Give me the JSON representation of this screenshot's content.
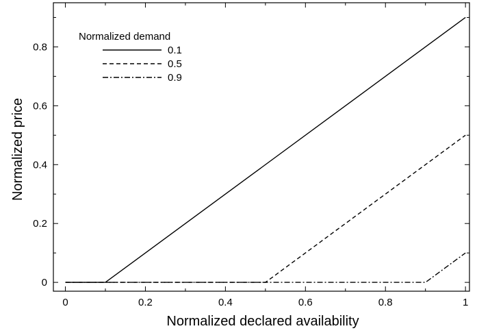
{
  "chart_data": {
    "type": "line",
    "xlabel": "Normalized declared availability",
    "ylabel": "Normalized price",
    "xlim": [
      -0.03,
      1.01
    ],
    "ylim": [
      -0.03,
      0.95
    ],
    "x_ticks": [
      0,
      0.2,
      0.4,
      0.6,
      0.8,
      1
    ],
    "x_tick_labels": [
      "0",
      "0.2",
      "0.4",
      "0.6",
      "0.8",
      "1"
    ],
    "y_ticks": [
      0,
      0.2,
      0.4,
      0.6,
      0.8
    ],
    "y_tick_labels": [
      "0",
      "0.2",
      "0.4",
      "0.6",
      "0.8"
    ],
    "grid": false,
    "legend": {
      "title": "Normalized demand",
      "placement": "top-left"
    },
    "series": [
      {
        "name": "0.1",
        "dash": "solid",
        "x": [
          0,
          0.1,
          1
        ],
        "y": [
          0,
          0,
          0.9
        ]
      },
      {
        "name": "0.5",
        "dash": "dashed",
        "x": [
          0,
          0.5,
          1
        ],
        "y": [
          0,
          0,
          0.5
        ]
      },
      {
        "name": "0.9",
        "dash": "dashdot",
        "x": [
          0,
          0.9,
          1
        ],
        "y": [
          0,
          0,
          0.1
        ]
      }
    ]
  },
  "colors": {
    "line": "#000000",
    "axis": "#000000",
    "background": "#ffffff"
  }
}
